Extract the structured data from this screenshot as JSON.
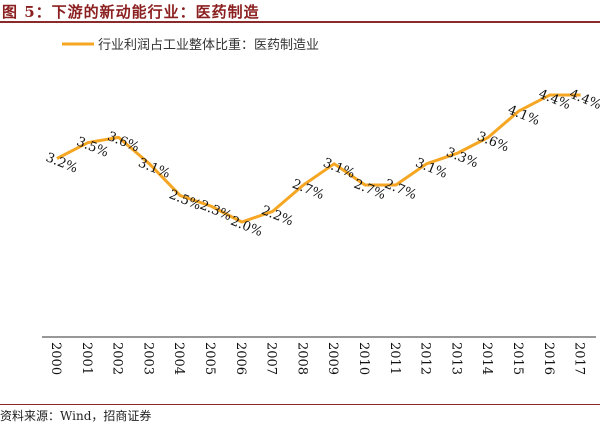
{
  "title": "图 5：下游的新动能行业：医药制造",
  "source": "资料来源：Wind，招商证券",
  "chart_data": {
    "type": "line",
    "title": "图 5：下游的新动能行业：医药制造",
    "xlabel": "",
    "ylabel": "",
    "legend_position": "top-center",
    "grid": false,
    "categories": [
      "2000",
      "2001",
      "2002",
      "2003",
      "2004",
      "2005",
      "2006",
      "2007",
      "2008",
      "2009",
      "2010",
      "2011",
      "2012",
      "2013",
      "2014",
      "2015",
      "2016",
      "2017"
    ],
    "series": [
      {
        "name": "行业利润占工业整体比重：医药制造业",
        "color": "#F5A623",
        "values": [
          3.2,
          3.5,
          3.6,
          3.1,
          2.5,
          2.3,
          2.0,
          2.2,
          2.7,
          3.1,
          2.7,
          2.7,
          3.1,
          3.3,
          3.6,
          4.1,
          4.4,
          4.4
        ],
        "labels": [
          "3.2%",
          "3.5%",
          "3.6%",
          "3.1%",
          "2.5%",
          "2.3%",
          "2.0%",
          "2.2%",
          "2.7%",
          "3.1%",
          "2.7%",
          "2.7%",
          "3.1%",
          "3.3%",
          "3.6%",
          "4.1%",
          "4.4%",
          "4.4%"
        ]
      }
    ]
  }
}
